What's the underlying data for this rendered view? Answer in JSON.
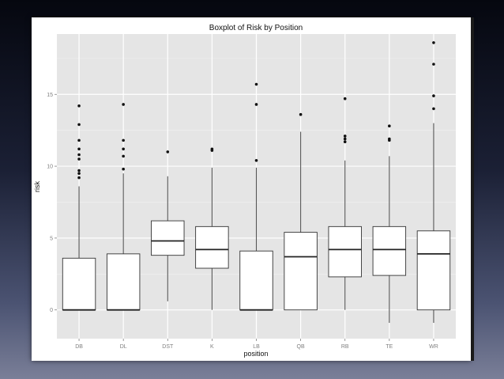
{
  "chart_data": {
    "type": "box",
    "title": "Boxplot of Risk by Position",
    "xlabel": "position",
    "ylabel": "risk",
    "ylim": [
      -2,
      19.2
    ],
    "yticks": [
      0,
      5,
      10,
      15
    ],
    "ytick_labels": [
      "0",
      "5",
      "10",
      "15"
    ],
    "grid": true,
    "categories": [
      "DB",
      "DL",
      "DST",
      "K",
      "LB",
      "QB",
      "RB",
      "TE",
      "WR"
    ],
    "boxes": [
      {
        "category": "DB",
        "whisker_low": 0,
        "q1": 0,
        "median": 0,
        "q3": 3.6,
        "whisker_high": 8.6,
        "outliers": [
          9.2,
          9.5,
          9.7,
          10.5,
          10.8,
          11.2,
          11.8,
          12.9,
          14.2
        ]
      },
      {
        "category": "DL",
        "whisker_low": 0,
        "q1": 0,
        "median": 0,
        "q3": 3.9,
        "whisker_high": 9.5,
        "outliers": [
          9.8,
          10.7,
          11.2,
          11.8,
          14.3
        ]
      },
      {
        "category": "DST",
        "whisker_low": 0.6,
        "q1": 3.8,
        "median": 4.8,
        "q3": 6.2,
        "whisker_high": 9.3,
        "outliers": [
          11.0
        ]
      },
      {
        "category": "K",
        "whisker_low": 0,
        "q1": 2.9,
        "median": 4.2,
        "q3": 5.8,
        "whisker_high": 9.9,
        "outliers": [
          11.1,
          11.2
        ]
      },
      {
        "category": "LB",
        "whisker_low": 0,
        "q1": 0,
        "median": 0,
        "q3": 4.1,
        "whisker_high": 9.9,
        "outliers": [
          10.4,
          14.3,
          15.7
        ]
      },
      {
        "category": "QB",
        "whisker_low": 0,
        "q1": 0,
        "median": 3.7,
        "q3": 5.4,
        "whisker_high": 12.4,
        "outliers": [
          13.6
        ]
      },
      {
        "category": "RB",
        "whisker_low": 0,
        "q1": 2.3,
        "median": 4.2,
        "q3": 5.8,
        "whisker_high": 10.4,
        "outliers": [
          11.7,
          11.9,
          12.1,
          14.7
        ]
      },
      {
        "category": "TE",
        "whisker_low": -0.9,
        "q1": 2.4,
        "median": 4.2,
        "q3": 5.8,
        "whisker_high": 10.7,
        "outliers": [
          11.8,
          11.9,
          12.8
        ]
      },
      {
        "category": "WR",
        "whisker_low": -0.9,
        "q1": 0,
        "median": 3.9,
        "q3": 5.5,
        "whisker_high": 13.0,
        "outliers": [
          14.0,
          14.9,
          17.1,
          18.6
        ]
      }
    ]
  }
}
